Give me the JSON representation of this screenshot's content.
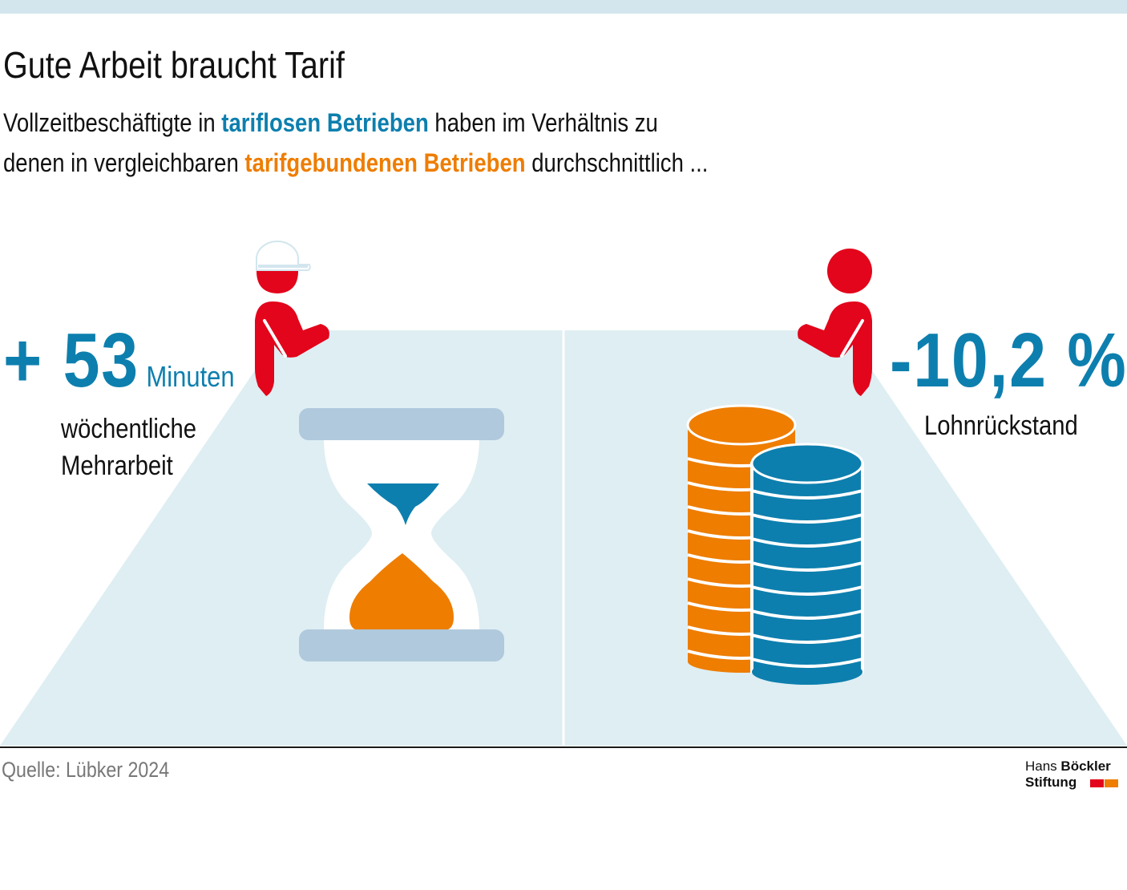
{
  "header": {
    "title": "Gute Arbeit braucht Tarif",
    "subtitle": {
      "part1": "Vollzeitbeschäftigte in ",
      "highlight1": "tariflosen Betrieben",
      "part2": " haben im Verhältnis zu",
      "part3": "denen in vergleichbaren ",
      "highlight2": "tarifgebundenen Betrieben",
      "part4": " durchschnittlich ..."
    }
  },
  "stats": {
    "left": {
      "value": "+ 53",
      "unit": "Minuten",
      "label_line1": "wöchentliche",
      "label_line2": "Mehrarbeit"
    },
    "right": {
      "value": "-10,2 %",
      "label": "Lohnrückstand"
    }
  },
  "footer": {
    "source": "Quelle: Lübker 2024",
    "logo_line1_regular": "Hans ",
    "logo_line1_bold": "Böckler",
    "logo_line2": "Stiftung"
  },
  "colors": {
    "blue": "#0d7fae",
    "orange": "#ee7d00",
    "red": "#e3051b",
    "floor": "#deeef3",
    "hourglass_bar": "#b0c9dc"
  },
  "icons": [
    "worker-with-cap-icon",
    "person-icon",
    "hourglass-icon",
    "coin-stack-icon"
  ]
}
